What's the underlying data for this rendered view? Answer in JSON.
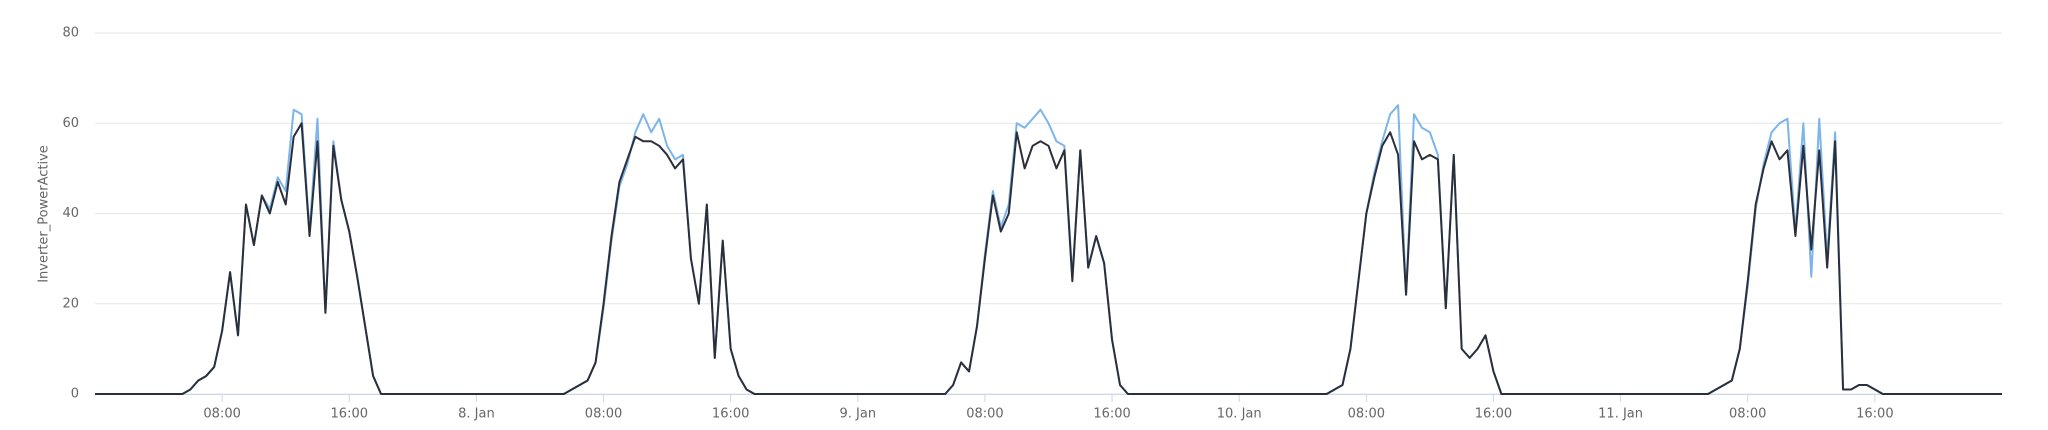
{
  "chart_data": {
    "type": "line",
    "y_label": "Inverter_PowerActive",
    "x": [
      0,
      5,
      5.5,
      6,
      6.5,
      7,
      7.5,
      8,
      8.5,
      9,
      9.5,
      10,
      10.5,
      11,
      11.5,
      12,
      12.5,
      13,
      13.5,
      14,
      14.5,
      15,
      15.5,
      16,
      16.5,
      17,
      17.5,
      18,
      18.5,
      19,
      29,
      29.5,
      30,
      30.5,
      31,
      31.5,
      32,
      32.5,
      33,
      33.5,
      34,
      34.5,
      35,
      35.5,
      36,
      36.5,
      37,
      37.5,
      38,
      38.5,
      39,
      39.5,
      40,
      40.5,
      41,
      41.5,
      42,
      42.5,
      43,
      53,
      53.5,
      54,
      54.5,
      55,
      55.5,
      56,
      56.5,
      57,
      57.5,
      58,
      58.5,
      59,
      59.5,
      60,
      60.5,
      61,
      61.5,
      62,
      62.5,
      63,
      63.5,
      64,
      64.5,
      65,
      65.5,
      66,
      66.5,
      67,
      77,
      77.5,
      78,
      78.5,
      79,
      79.5,
      80,
      80.5,
      81,
      81.5,
      82,
      82.5,
      83,
      83.5,
      84,
      84.5,
      85,
      85.5,
      86,
      86.5,
      87,
      87.5,
      88,
      88.5,
      89,
      89.5,
      90,
      90.5,
      91,
      101,
      101.5,
      102,
      102.5,
      103,
      103.5,
      104,
      104.5,
      105,
      105.5,
      106,
      106.5,
      107,
      107.5,
      108,
      108.5,
      109,
      109.5,
      110,
      110.5,
      111,
      111.5,
      112,
      112.5,
      113,
      113.5,
      114,
      114.5,
      115,
      120
    ],
    "series": [
      {
        "color": "#7cb5ec",
        "values": [
          0,
          0,
          0,
          1,
          3,
          4,
          6,
          14,
          27,
          13,
          42,
          33,
          44,
          41,
          48,
          45,
          63,
          62,
          36,
          61,
          18,
          56,
          43,
          36,
          26,
          15,
          4,
          0,
          0,
          0,
          0,
          0,
          1,
          2,
          3,
          7,
          19,
          34,
          46,
          51,
          58,
          62,
          58,
          61,
          55,
          52,
          53,
          30,
          20,
          42,
          8,
          34,
          10,
          4,
          1,
          0,
          0,
          0,
          0,
          0,
          0,
          2,
          7,
          5,
          15,
          31,
          45,
          37,
          42,
          60,
          59,
          61,
          63,
          60,
          56,
          55,
          26,
          54,
          28,
          35,
          29,
          12,
          2,
          0,
          0,
          0,
          0,
          0,
          0,
          0,
          1,
          2,
          10,
          25,
          40,
          49,
          56,
          62,
          64,
          22,
          62,
          59,
          58,
          53,
          19,
          53,
          10,
          8,
          10,
          13,
          5,
          0,
          0,
          0,
          0,
          0,
          0,
          0,
          0,
          1,
          2,
          3,
          10,
          24,
          41,
          51,
          58,
          60,
          61,
          36,
          60,
          26,
          61,
          30,
          58,
          1,
          1,
          2,
          2,
          1,
          0,
          0,
          0,
          0,
          0,
          0,
          0
        ]
      },
      {
        "color": "#2b2f3a",
        "values": [
          0,
          0,
          0,
          1,
          3,
          4,
          6,
          14,
          27,
          13,
          42,
          33,
          44,
          40,
          47,
          42,
          57,
          60,
          35,
          56,
          18,
          55,
          43,
          36,
          26,
          15,
          4,
          0,
          0,
          0,
          0,
          0,
          1,
          2,
          3,
          7,
          20,
          35,
          47,
          52,
          57,
          56,
          56,
          55,
          53,
          50,
          52,
          30,
          20,
          42,
          8,
          34,
          10,
          4,
          1,
          0,
          0,
          0,
          0,
          0,
          0,
          2,
          7,
          5,
          15,
          30,
          44,
          36,
          40,
          58,
          50,
          55,
          56,
          55,
          50,
          54,
          25,
          54,
          28,
          35,
          29,
          12,
          2,
          0,
          0,
          0,
          0,
          0,
          0,
          0,
          1,
          2,
          10,
          25,
          40,
          48,
          55,
          58,
          53,
          22,
          56,
          52,
          53,
          52,
          19,
          53,
          10,
          8,
          10,
          13,
          5,
          0,
          0,
          0,
          0,
          0,
          0,
          0,
          0,
          1,
          2,
          3,
          10,
          25,
          42,
          50,
          56,
          52,
          54,
          35,
          55,
          32,
          54,
          28,
          56,
          1,
          1,
          2,
          2,
          1,
          0,
          0,
          0,
          0,
          0,
          0,
          0
        ]
      }
    ],
    "xlim": [
      0,
      120
    ],
    "xticks": [
      {
        "value": 8,
        "label": "08:00"
      },
      {
        "value": 16,
        "label": "16:00"
      },
      {
        "value": 24,
        "label": "8. Jan"
      },
      {
        "value": 32,
        "label": "08:00"
      },
      {
        "value": 40,
        "label": "16:00"
      },
      {
        "value": 48,
        "label": "9. Jan"
      },
      {
        "value": 56,
        "label": "08:00"
      },
      {
        "value": 64,
        "label": "16:00"
      },
      {
        "value": 72,
        "label": "10. Jan"
      },
      {
        "value": 80,
        "label": "08:00"
      },
      {
        "value": 88,
        "label": "16:00"
      },
      {
        "value": 96,
        "label": "11. Jan"
      },
      {
        "value": 104,
        "label": "08:00"
      },
      {
        "value": 112,
        "label": "16:00"
      }
    ],
    "ylim": [
      0,
      80
    ],
    "yticks": [
      0,
      20,
      40,
      60,
      80
    ],
    "grid": true
  }
}
